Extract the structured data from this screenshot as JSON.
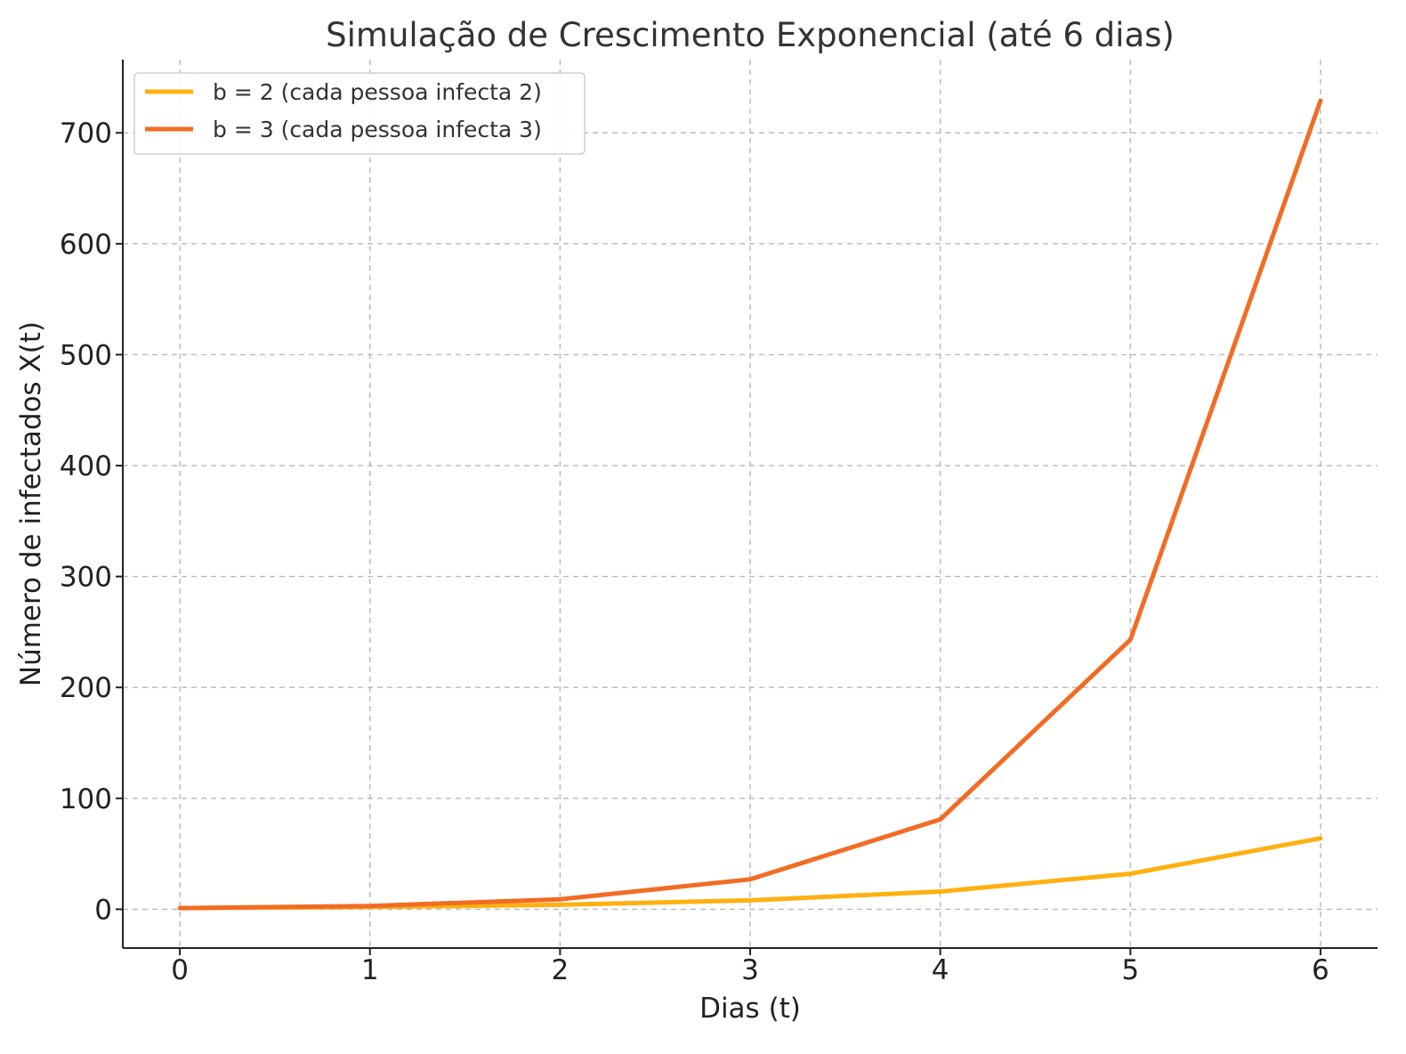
{
  "chart_data": {
    "type": "line",
    "title": "Simulação de Crescimento Exponencial (até 6 dias)",
    "xlabel": "Dias (t)",
    "ylabel": "Número de infectados X(t)",
    "x": [
      0,
      1,
      2,
      3,
      4,
      5,
      6
    ],
    "xlim": [
      -0.3,
      6.3
    ],
    "ylim": [
      -35,
      766
    ],
    "xticks": [
      0,
      1,
      2,
      3,
      4,
      5,
      6
    ],
    "yticks": [
      0,
      100,
      200,
      300,
      400,
      500,
      600,
      700
    ],
    "grid": true,
    "legend_position": "top-left",
    "series": [
      {
        "name": "b = 2 (cada pessoa infecta 2)",
        "color": "#FFB011",
        "values": [
          1,
          2,
          4,
          8,
          16,
          32,
          64
        ]
      },
      {
        "name": "b = 3 (cada pessoa infecta 3)",
        "color": "#F26C24",
        "values": [
          1,
          3,
          9,
          27,
          81,
          243,
          729
        ]
      }
    ]
  }
}
